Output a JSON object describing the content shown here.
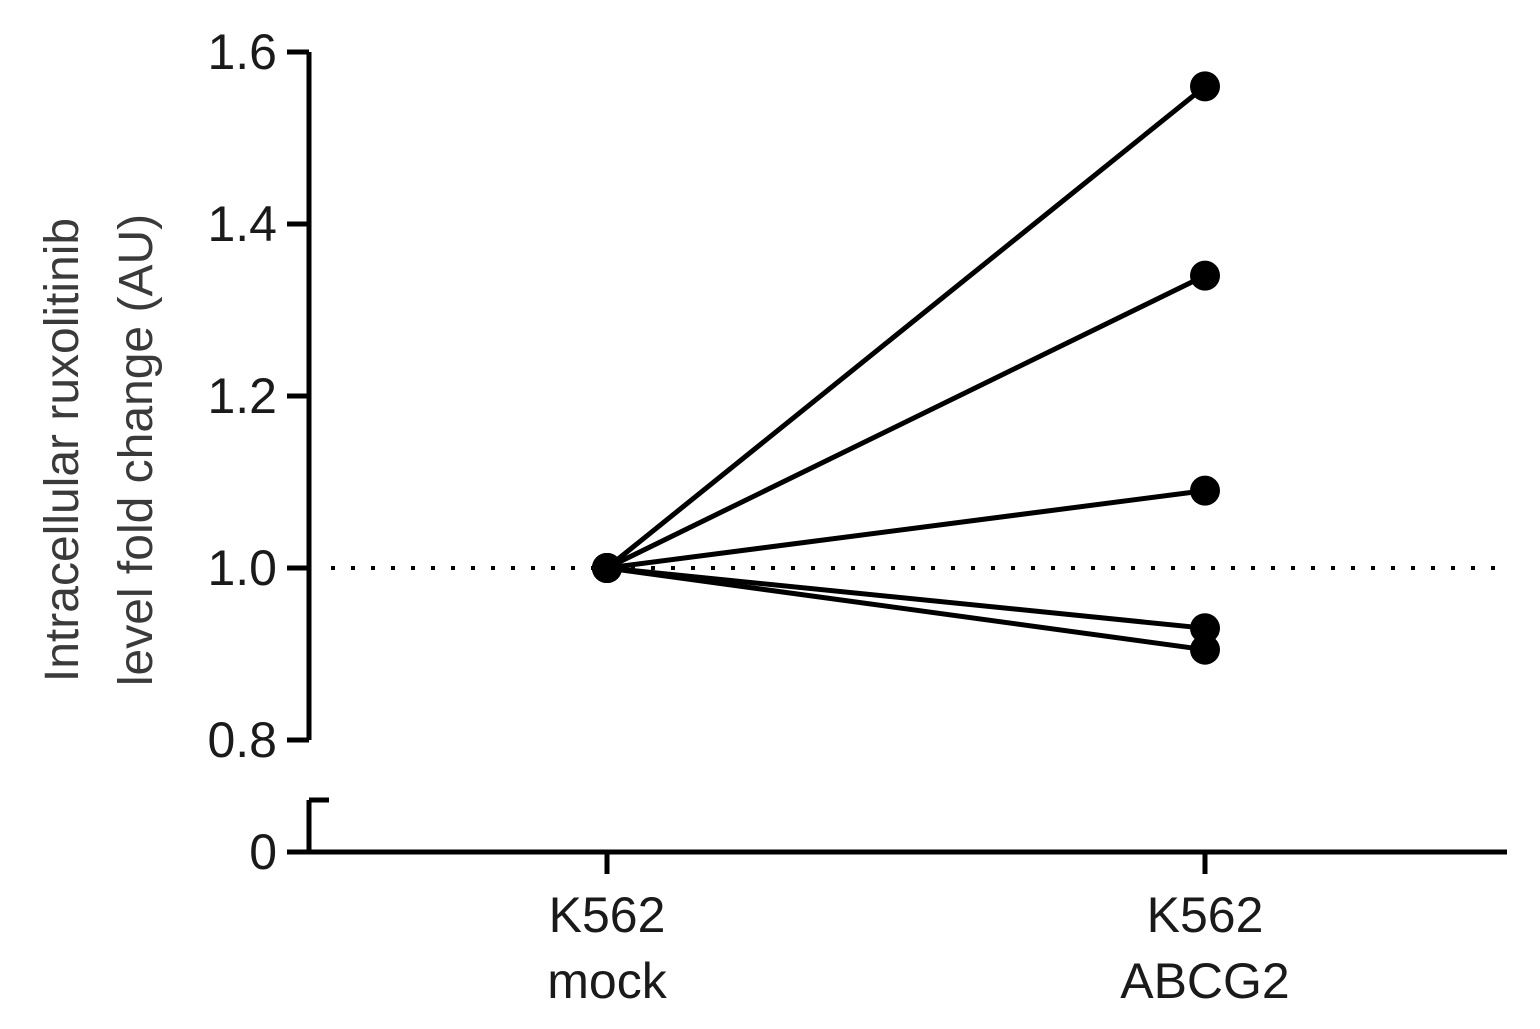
{
  "chart_data": {
    "type": "line",
    "categories": [
      {
        "line1": "K562",
        "line2": "mock"
      },
      {
        "line1": "K562",
        "line2": "ABCG2"
      }
    ],
    "ylabel_line1": "Intracellular ruxolitinib",
    "ylabel_line2": "level fold change (AU)",
    "y_ticks_upper": [
      "0.8",
      "1.0",
      "1.2",
      "1.4",
      "1.6"
    ],
    "y_tick_values_upper": [
      0.8,
      1.0,
      1.2,
      1.4,
      1.6
    ],
    "y_tick_lower": "0",
    "ylim_upper": [
      0.8,
      1.6
    ],
    "axis_break": true,
    "reference_line": {
      "y": 1.0,
      "style": "dotted"
    },
    "series": [
      {
        "values": [
          1.0,
          1.56
        ]
      },
      {
        "values": [
          1.0,
          1.34
        ]
      },
      {
        "values": [
          1.0,
          1.09
        ]
      },
      {
        "values": [
          1.0,
          0.93
        ]
      },
      {
        "values": [
          1.0,
          0.905
        ]
      }
    ],
    "colors": {
      "line": "#000000",
      "axis": "#000000",
      "reference": "#000000"
    }
  }
}
